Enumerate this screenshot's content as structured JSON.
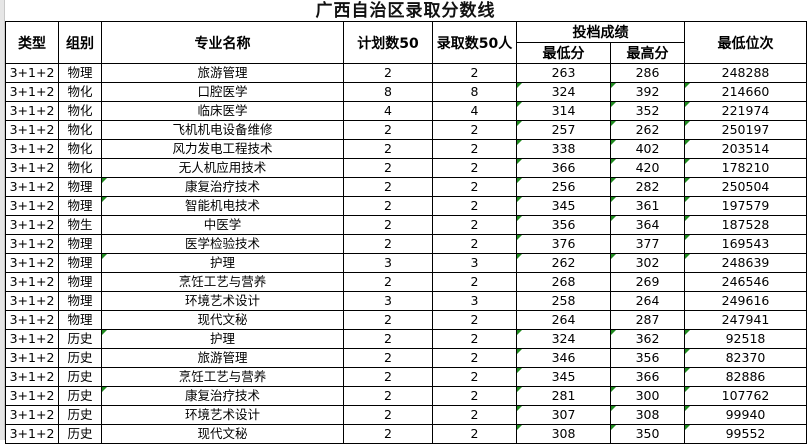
{
  "title": "广西自治区录取分数线",
  "headers": {
    "type": "类型",
    "group": "组别",
    "major": "专业名称",
    "plan": "计划数50",
    "admit": "录取数50人",
    "score_group": "投档成绩",
    "min": "最低分",
    "max": "最高分",
    "rank": "最低位次"
  },
  "colors": {
    "cell_marker": "#1f8a1f"
  },
  "rows": [
    {
      "type": "3+1+2",
      "group": "物理",
      "major": "旅游管理",
      "plan": "2",
      "admit": "2",
      "min": "263",
      "max": "286",
      "rank": "248288",
      "marks": []
    },
    {
      "type": "3+1+2",
      "group": "物化",
      "major": "口腔医学",
      "plan": "8",
      "admit": "8",
      "min": "324",
      "max": "392",
      "rank": "214660",
      "marks": [
        "min",
        "max",
        "rank"
      ]
    },
    {
      "type": "3+1+2",
      "group": "物化",
      "major": "临床医学",
      "plan": "4",
      "admit": "4",
      "min": "314",
      "max": "352",
      "rank": "221974",
      "marks": [
        "min",
        "max",
        "rank"
      ]
    },
    {
      "type": "3+1+2",
      "group": "物化",
      "major": "飞机机电设备维修",
      "plan": "2",
      "admit": "2",
      "min": "257",
      "max": "262",
      "rank": "250197",
      "marks": [
        "min",
        "max",
        "rank"
      ]
    },
    {
      "type": "3+1+2",
      "group": "物化",
      "major": "风力发电工程技术",
      "plan": "2",
      "admit": "2",
      "min": "338",
      "max": "402",
      "rank": "203514",
      "marks": [
        "min",
        "max",
        "rank"
      ]
    },
    {
      "type": "3+1+2",
      "group": "物化",
      "major": "无人机应用技术",
      "plan": "2",
      "admit": "2",
      "min": "366",
      "max": "420",
      "rank": "178210",
      "marks": [
        "min",
        "max",
        "rank"
      ]
    },
    {
      "type": "3+1+2",
      "group": "物理",
      "major": "康复治疗技术",
      "plan": "2",
      "admit": "2",
      "min": "256",
      "max": "282",
      "rank": "250504",
      "marks": [
        "major",
        "min",
        "max",
        "rank"
      ]
    },
    {
      "type": "3+1+2",
      "group": "物理",
      "major": "智能机电技术",
      "plan": "2",
      "admit": "2",
      "min": "345",
      "max": "361",
      "rank": "197579",
      "marks": [
        "major",
        "min",
        "max",
        "rank"
      ]
    },
    {
      "type": "3+1+2",
      "group": "物生",
      "major": "中医学",
      "plan": "2",
      "admit": "2",
      "min": "356",
      "max": "364",
      "rank": "187528",
      "marks": [
        "min",
        "max",
        "rank"
      ]
    },
    {
      "type": "3+1+2",
      "group": "物理",
      "major": "医学检验技术",
      "plan": "2",
      "admit": "2",
      "min": "376",
      "max": "377",
      "rank": "169543",
      "marks": [
        "min",
        "rank"
      ]
    },
    {
      "type": "3+1+2",
      "group": "物理",
      "major": "护理",
      "plan": "3",
      "admit": "3",
      "min": "262",
      "max": "302",
      "rank": "248639",
      "marks": [
        "major",
        "min",
        "max",
        "rank"
      ]
    },
    {
      "type": "3+1+2",
      "group": "物理",
      "major": "烹饪工艺与营养",
      "plan": "2",
      "admit": "2",
      "min": "268",
      "max": "269",
      "rank": "246546",
      "marks": []
    },
    {
      "type": "3+1+2",
      "group": "物理",
      "major": "环境艺术设计",
      "plan": "3",
      "admit": "3",
      "min": "258",
      "max": "264",
      "rank": "249616",
      "marks": []
    },
    {
      "type": "3+1+2",
      "group": "物理",
      "major": "现代文秘",
      "plan": "2",
      "admit": "2",
      "min": "264",
      "max": "287",
      "rank": "247941",
      "marks": []
    },
    {
      "type": "3+1+2",
      "group": "历史",
      "major": "护理",
      "plan": "2",
      "admit": "2",
      "min": "324",
      "max": "362",
      "rank": "92518",
      "marks": [
        "major",
        "min",
        "max",
        "rank"
      ]
    },
    {
      "type": "3+1+2",
      "group": "历史",
      "major": "旅游管理",
      "plan": "2",
      "admit": "2",
      "min": "346",
      "max": "356",
      "rank": "82370",
      "marks": [
        "min",
        "rank"
      ]
    },
    {
      "type": "3+1+2",
      "group": "历史",
      "major": "烹饪工艺与营养",
      "plan": "2",
      "admit": "2",
      "min": "345",
      "max": "366",
      "rank": "82886",
      "marks": [
        "min",
        "rank"
      ]
    },
    {
      "type": "3+1+2",
      "group": "历史",
      "major": "康复治疗技术",
      "plan": "2",
      "admit": "2",
      "min": "281",
      "max": "300",
      "rank": "107762",
      "marks": [
        "major",
        "min",
        "max",
        "rank"
      ]
    },
    {
      "type": "3+1+2",
      "group": "历史",
      "major": "环境艺术设计",
      "plan": "2",
      "admit": "2",
      "min": "307",
      "max": "308",
      "rank": "99940",
      "marks": [
        "min",
        "max",
        "rank"
      ]
    },
    {
      "type": "3+1+2",
      "group": "历史",
      "major": "现代文秘",
      "plan": "2",
      "admit": "2",
      "min": "308",
      "max": "350",
      "rank": "99552",
      "marks": [
        "min",
        "max",
        "rank"
      ]
    }
  ]
}
